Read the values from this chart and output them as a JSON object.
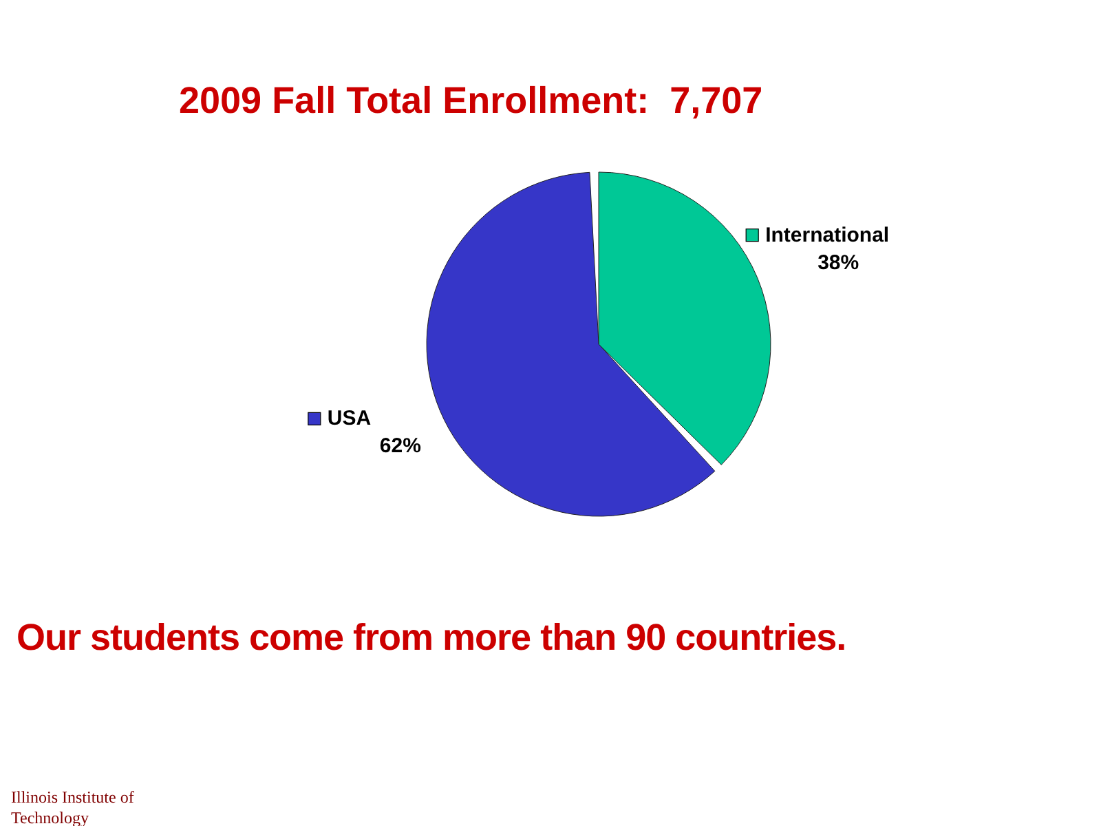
{
  "chart_data": {
    "type": "pie",
    "title": "2009 Fall Total Enrollment:  7,707",
    "categories": [
      "International",
      "USA"
    ],
    "values": [
      38,
      62
    ],
    "colors": [
      "#00c896",
      "#3636c8"
    ],
    "value_labels": [
      "38%",
      "62%"
    ],
    "legend": "top right",
    "annotations": [
      "Our students come from more than 90 countries.",
      "Illinois Institute of Technology"
    ]
  }
}
